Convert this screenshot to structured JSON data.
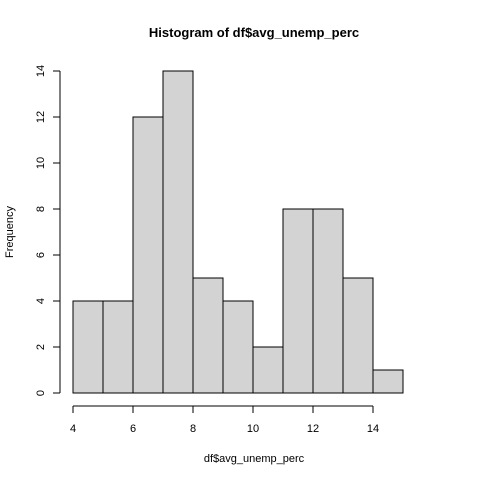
{
  "chart_data": {
    "type": "bar",
    "title": "Histogram of df$avg_unemp_perc",
    "xlabel": "df$avg_unemp_perc",
    "ylabel": "Frequency",
    "bin_edges": [
      4,
      5,
      6,
      7,
      8,
      9,
      10,
      11,
      12,
      13,
      14,
      15
    ],
    "values": [
      4,
      4,
      12,
      14,
      5,
      4,
      2,
      8,
      8,
      5,
      1
    ],
    "xlim": [
      4,
      15
    ],
    "ylim": [
      0,
      14
    ],
    "x_ticks": [
      4,
      6,
      8,
      10,
      12,
      14
    ],
    "y_ticks": [
      0,
      2,
      4,
      6,
      8,
      10,
      12,
      14
    ],
    "bar_color": "#d3d3d3",
    "grid": false
  }
}
